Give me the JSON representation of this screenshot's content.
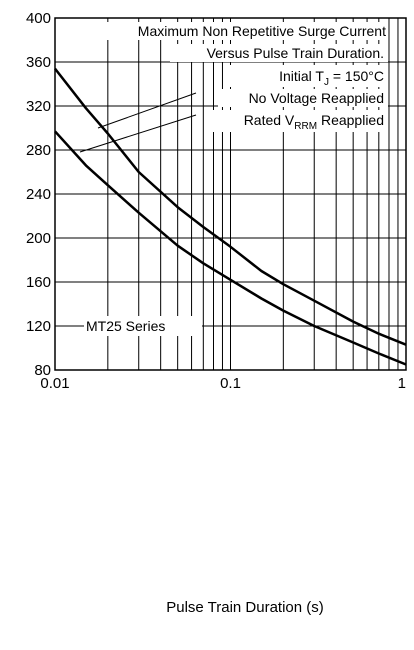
{
  "chart_data": {
    "type": "line",
    "x_scale": "log",
    "xlim": [
      0.01,
      1
    ],
    "ylim": [
      80,
      400
    ],
    "grid": true,
    "x_ticks": [
      "0.01",
      "0.1",
      "1"
    ],
    "y_ticks": [
      "400",
      "360",
      "320",
      "280",
      "240",
      "200",
      "160",
      "120",
      "80"
    ],
    "xlabel": "Pulse Train Duration (s)",
    "annotations": {
      "line1": "Maximum Non Repetitive Surge Current",
      "line2": "Versus Pulse Train Duration.",
      "line3_pre": "Initial T",
      "line3_sub": "J",
      "line3_post": " = 150°C",
      "line4": "No Voltage Reapplied",
      "line5_pre": "Rated V",
      "line5_sub": "RRM",
      "line5_post": " Reapplied",
      "series_label": "MT25 Series"
    },
    "series": [
      {
        "x": [
          0.01,
          0.015,
          0.02,
          0.03,
          0.05,
          0.07,
          0.1,
          0.15,
          0.2,
          0.3,
          0.5,
          0.7,
          1
        ],
        "y": [
          354,
          318,
          295,
          260,
          228,
          210,
          192,
          170,
          158,
          143,
          124,
          113,
          103
        ]
      },
      {
        "x": [
          0.01,
          0.015,
          0.02,
          0.03,
          0.05,
          0.07,
          0.1,
          0.15,
          0.2,
          0.3,
          0.5,
          0.7,
          1
        ],
        "y": [
          297,
          266,
          248,
          223,
          193,
          177,
          162,
          145,
          134,
          120,
          105,
          95,
          85
        ]
      }
    ]
  }
}
